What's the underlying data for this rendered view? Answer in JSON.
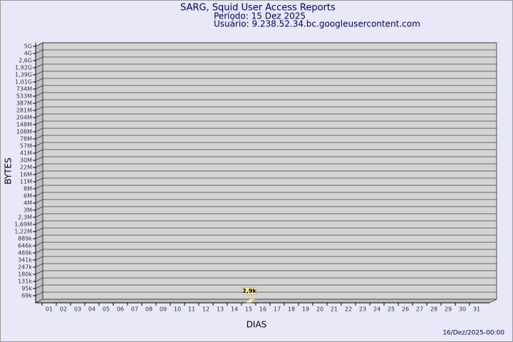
{
  "chart_data": {
    "type": "bar",
    "title": "SARG, Squid User Access Reports",
    "subtitle": "Período: 15 Dez 2025",
    "user": "Usuário: 9.238.52.34.bc.googleusercontent.com",
    "x_label": "DIAS",
    "y_label": "BYTES",
    "footer": "16/Dez/2025-00:00",
    "categories": [
      "01",
      "02",
      "03",
      "04",
      "05",
      "06",
      "07",
      "08",
      "09",
      "10",
      "11",
      "12",
      "13",
      "14",
      "15",
      "16",
      "17",
      "18",
      "19",
      "20",
      "21",
      "22",
      "23",
      "24",
      "25",
      "26",
      "27",
      "28",
      "29",
      "30",
      "31"
    ],
    "values": [
      null,
      null,
      null,
      null,
      null,
      null,
      null,
      null,
      null,
      null,
      null,
      null,
      null,
      null,
      2900,
      null,
      null,
      null,
      null,
      null,
      null,
      null,
      null,
      null,
      null,
      null,
      null,
      null,
      null,
      null,
      null
    ],
    "value_labels": [
      null,
      null,
      null,
      null,
      null,
      null,
      null,
      null,
      null,
      null,
      null,
      null,
      null,
      null,
      "2,9k",
      null,
      null,
      null,
      null,
      null,
      null,
      null,
      null,
      null,
      null,
      null,
      null,
      null,
      null,
      null,
      null
    ],
    "color": "#f5eb9a",
    "ylim": [
      0,
      5000000000
    ],
    "yticks": [
      {
        "value": 69000,
        "label": "69k"
      },
      {
        "value": 95000,
        "label": "95k"
      },
      {
        "value": 131000,
        "label": "131k"
      },
      {
        "value": 180000,
        "label": "180k"
      },
      {
        "value": 247000,
        "label": "247k"
      },
      {
        "value": 341000,
        "label": "341k"
      },
      {
        "value": 469000,
        "label": "469k"
      },
      {
        "value": 646000,
        "label": "646k"
      },
      {
        "value": 889000,
        "label": "889k"
      },
      {
        "value": 1220000,
        "label": "1,22M"
      },
      {
        "value": 1690000,
        "label": "1,69M"
      },
      {
        "value": 2300000,
        "label": "2,3M"
      },
      {
        "value": 3000000,
        "label": "3M"
      },
      {
        "value": 4000000,
        "label": "4M"
      },
      {
        "value": 6000000,
        "label": "6M"
      },
      {
        "value": 8000000,
        "label": "8M"
      },
      {
        "value": 11000000,
        "label": "11M"
      },
      {
        "value": 16000000,
        "label": "16M"
      },
      {
        "value": 22000000,
        "label": "22M"
      },
      {
        "value": 30000000,
        "label": "30M"
      },
      {
        "value": 41000000,
        "label": "41M"
      },
      {
        "value": 57000000,
        "label": "57M"
      },
      {
        "value": 78000000,
        "label": "78M"
      },
      {
        "value": 108000000,
        "label": "108M"
      },
      {
        "value": 148000000,
        "label": "148M"
      },
      {
        "value": 204000000,
        "label": "204M"
      },
      {
        "value": 281000000,
        "label": "281M"
      },
      {
        "value": 387000000,
        "label": "387M"
      },
      {
        "value": 533000000,
        "label": "533M"
      },
      {
        "value": 734000000,
        "label": "734M"
      },
      {
        "value": 1010000000,
        "label": "1,01G"
      },
      {
        "value": 1390000000,
        "label": "1,39G"
      },
      {
        "value": 1920000000,
        "label": "1,92G"
      },
      {
        "value": 2600000000,
        "label": "2,6G"
      },
      {
        "value": 4000000000,
        "label": "4G"
      },
      {
        "value": 5000000000,
        "label": "5G"
      }
    ],
    "grid": true
  }
}
